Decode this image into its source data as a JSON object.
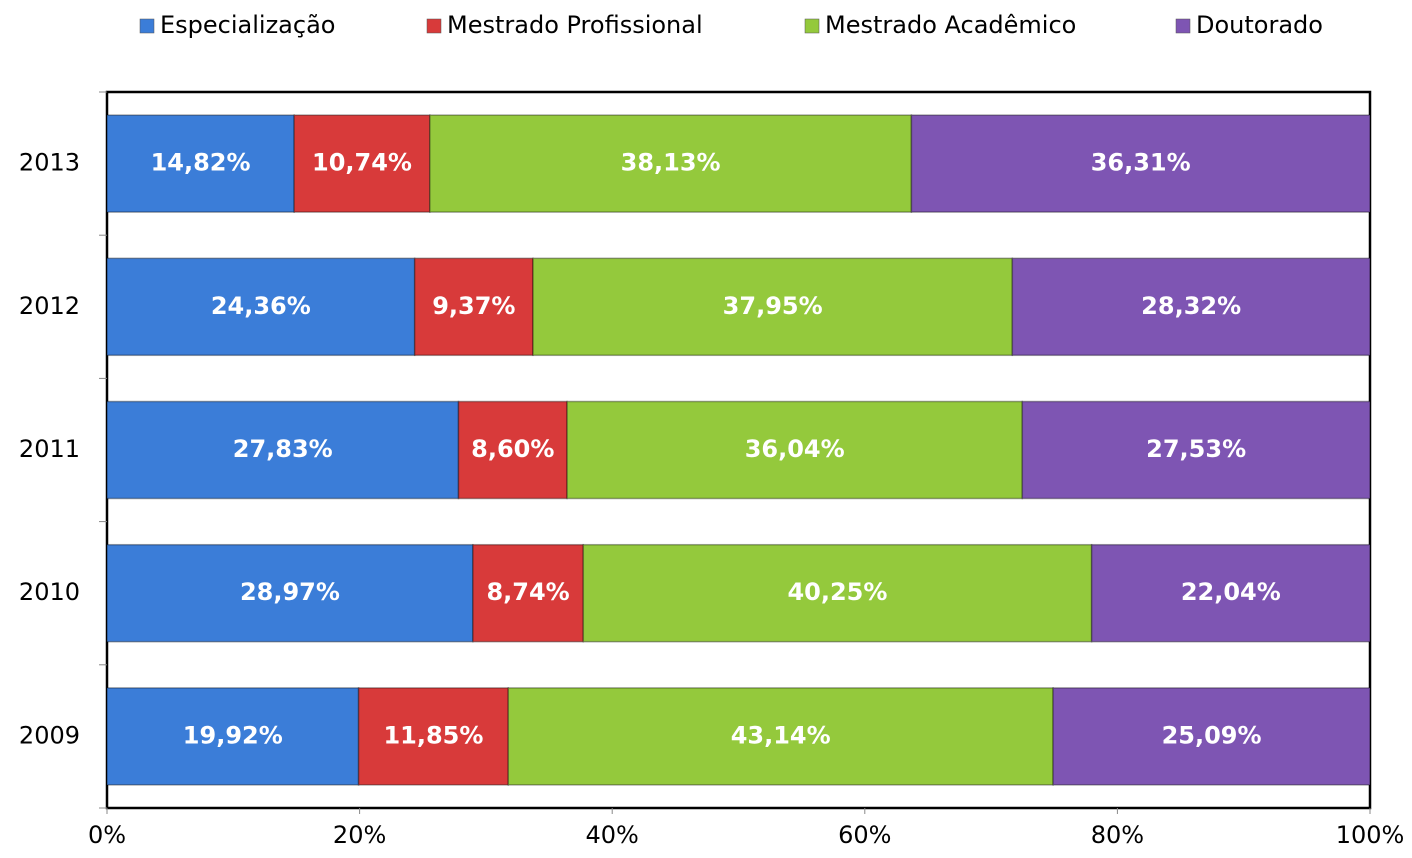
{
  "chart_data": {
    "type": "stacked_bar_horizontal",
    "categories": [
      "2009",
      "2010",
      "2011",
      "2012",
      "2013"
    ],
    "series": [
      {
        "name": "Especialização",
        "color": "#3b7dd8",
        "values": [
          19.92,
          28.97,
          27.83,
          24.36,
          14.82
        ],
        "value_labels": [
          "19,92%",
          "28,97%",
          "27,83%",
          "24,36%",
          "14,82%"
        ]
      },
      {
        "name": "Mestrado Profissional",
        "color": "#d83a3a",
        "values": [
          11.85,
          8.74,
          8.6,
          9.37,
          10.74
        ],
        "value_labels": [
          "11,85%",
          "8,74%",
          "8,60%",
          "9,37%",
          "10,74%"
        ]
      },
      {
        "name": "Mestrado Acadêmico",
        "color": "#94c93c",
        "values": [
          43.14,
          40.25,
          36.04,
          37.95,
          38.13
        ],
        "value_labels": [
          "43,14%",
          "40,25%",
          "36,04%",
          "37,95%",
          "38,13%"
        ]
      },
      {
        "name": "Doutorado",
        "color": "#7e55b3",
        "values": [
          25.09,
          22.04,
          27.53,
          28.32,
          36.31
        ],
        "value_labels": [
          "25,09%",
          "22,04%",
          "27,53%",
          "28,32%",
          "36,31%"
        ]
      }
    ],
    "xlim": [
      0,
      100
    ],
    "xticks": [
      {
        "value": 0,
        "label": "0%"
      },
      {
        "value": 20,
        "label": "20%"
      },
      {
        "value": 40,
        "label": "40%"
      },
      {
        "value": 60,
        "label": "60%"
      },
      {
        "value": 80,
        "label": "80%"
      },
      {
        "value": 100,
        "label": "100%"
      }
    ],
    "legend": "top"
  }
}
